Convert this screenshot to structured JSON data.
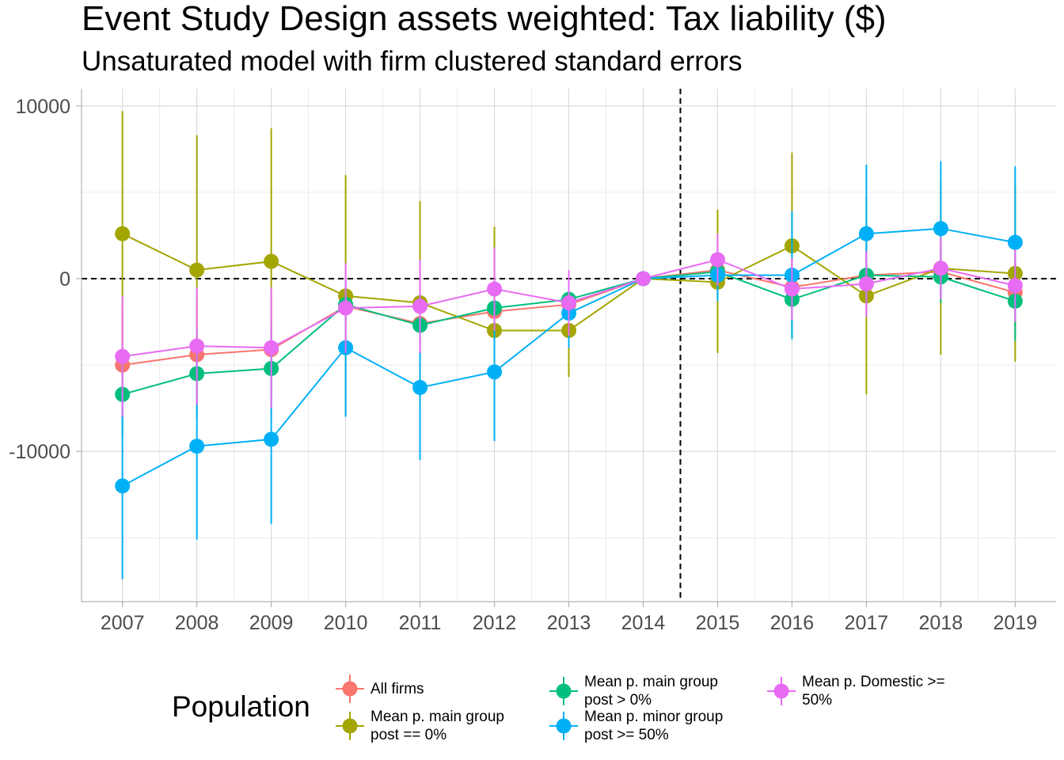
{
  "chart_data": {
    "type": "line",
    "title": "Event Study Design assets weighted: Tax liability  ($)",
    "subtitle": "Unsaturated model with firm clustered standard errors",
    "x": [
      2007,
      2008,
      2009,
      2010,
      2011,
      2012,
      2013,
      2014,
      2015,
      2016,
      2017,
      2018,
      2019
    ],
    "x_ticks": [
      "2007",
      "2008",
      "2009",
      "2010",
      "2011",
      "2012",
      "2013",
      "2014",
      "2015",
      "2016",
      "2017",
      "2018",
      "2019"
    ],
    "y_ticks": [
      10000,
      0,
      -10000
    ],
    "y_tick_labels": [
      "10000",
      "0",
      "-10000"
    ],
    "ylim": [
      -18700,
      11000
    ],
    "xlim": [
      2006.45,
      2019.55
    ],
    "reference_lines": {
      "vertical_x": 2014.5,
      "horizontal_y": 0,
      "style": "dashed"
    },
    "grid": true,
    "legend": {
      "title": "Population",
      "position": "bottom"
    },
    "series": [
      {
        "name": "All firms",
        "color": "#F8766D",
        "values": [
          -5000,
          -4400,
          -4100,
          -1600,
          -2600,
          -1900,
          -1500,
          0,
          500,
          -500,
          200,
          400,
          -800
        ],
        "lower": [
          -8300,
          -7600,
          -7200,
          -2600,
          -4000,
          -3200,
          -2500,
          0,
          -500,
          -3000,
          -1500,
          -1000,
          -2800
        ],
        "upper": [
          -1700,
          -1200,
          -1000,
          -600,
          -1200,
          -600,
          -500,
          0,
          1500,
          2000,
          1900,
          1800,
          1200
        ]
      },
      {
        "name": "Mean p. main group\npost == 0%",
        "color": "#A3A500",
        "values": [
          2600,
          500,
          1000,
          -1000,
          -1400,
          -3000,
          -3000,
          0,
          -200,
          1900,
          -1000,
          600,
          300
        ],
        "lower": [
          -4500,
          -7200,
          -6700,
          -8000,
          -7400,
          -9100,
          -5700,
          0,
          -4300,
          -3500,
          -6700,
          -4400,
          -4800
        ],
        "upper": [
          9700,
          8300,
          8700,
          6000,
          4500,
          3000,
          -300,
          0,
          4000,
          7300,
          4700,
          5600,
          5400
        ]
      },
      {
        "name": "Mean p. main group\npost > 0%",
        "color": "#00BF7D",
        "values": [
          -6700,
          -5500,
          -5200,
          -1500,
          -2700,
          -1700,
          -1200,
          0,
          400,
          -1200,
          200,
          100,
          -1300
        ],
        "lower": [
          -9200,
          -8100,
          -7800,
          -2900,
          -4500,
          -3500,
          -2700,
          0,
          -700,
          -3300,
          -1600,
          -1400,
          -3600
        ],
        "upper": [
          -4200,
          -2900,
          -2600,
          -100,
          -900,
          100,
          300,
          0,
          1500,
          900,
          2000,
          1600,
          1000
        ]
      },
      {
        "name": "Mean p. minor group\npost >= 50%",
        "color": "#00B0F6",
        "values": [
          -12000,
          -9700,
          -9300,
          -4000,
          -6300,
          -5400,
          -2000,
          0,
          200,
          200,
          2600,
          2900,
          2100
        ],
        "lower": [
          -17400,
          -15100,
          -14200,
          -8000,
          -10500,
          -9400,
          -4000,
          0,
          -1300,
          -3500,
          -1400,
          -1000,
          -2300
        ],
        "upper": [
          -6600,
          -4300,
          -4400,
          0,
          -2100,
          -1400,
          0,
          0,
          1700,
          3900,
          6600,
          6800,
          6500
        ]
      },
      {
        "name": "Mean p. Domestic >=\n50%",
        "color": "#E76BF3",
        "values": [
          -4500,
          -3900,
          -4000,
          -1700,
          -1600,
          -600,
          -1400,
          0,
          1100,
          -600,
          -300,
          600,
          -400
        ],
        "lower": [
          -8000,
          -7300,
          -7500,
          -4300,
          -4300,
          -3000,
          -3300,
          0,
          -400,
          -2400,
          -2200,
          -1200,
          -2500
        ],
        "upper": [
          -1000,
          -500,
          -500,
          900,
          1100,
          1800,
          500,
          0,
          2600,
          1200,
          1600,
          2400,
          1700
        ]
      }
    ]
  }
}
